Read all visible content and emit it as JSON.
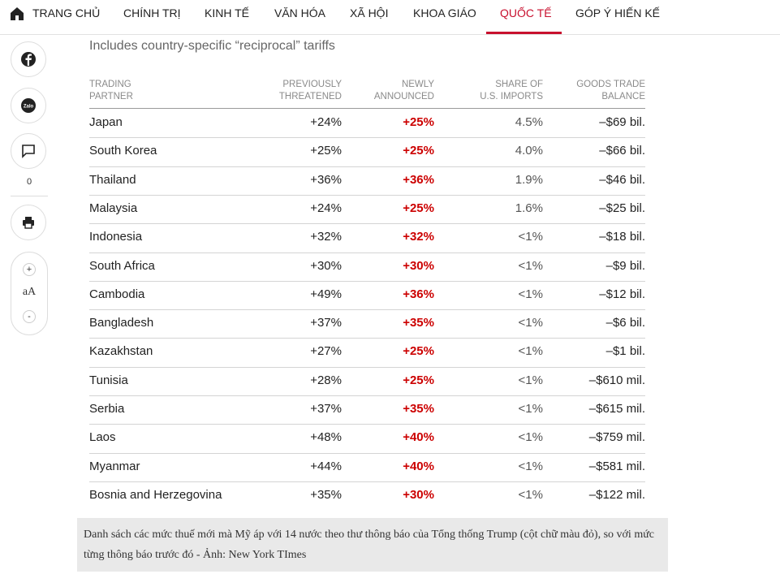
{
  "nav": {
    "items": [
      "TRANG CHỦ",
      "CHÍNH TRỊ",
      "KINH TẾ",
      "VĂN HÓA",
      "XÃ HỘI",
      "KHOA GIÁO",
      "QUỐC TẾ",
      "GÓP Ý HIẾN KẾ"
    ],
    "active": 6
  },
  "sidebar": {
    "comment_count": "0",
    "font_label": "aA",
    "font_up": "+",
    "font_down": "-"
  },
  "table": {
    "subtitle": "Includes country-specific “reciprocal” tariffs",
    "headers": [
      [
        "TRADING",
        "PARTNER"
      ],
      [
        "PREVIOUSLY",
        "THREATENED"
      ],
      [
        "NEWLY",
        "ANNOUNCED"
      ],
      [
        "SHARE OF",
        "U.S. IMPORTS"
      ],
      [
        "GOODS TRADE",
        "BALANCE"
      ]
    ],
    "rows": [
      [
        "Japan",
        "+24%",
        "+25%",
        "4.5%",
        "–$69 bil."
      ],
      [
        "South Korea",
        "+25%",
        "+25%",
        "4.0%",
        "–$66 bil."
      ],
      [
        "Thailand",
        "+36%",
        "+36%",
        "1.9%",
        "–$46 bil."
      ],
      [
        "Malaysia",
        "+24%",
        "+25%",
        "1.6%",
        "–$25 bil."
      ],
      [
        "Indonesia",
        "+32%",
        "+32%",
        "<1%",
        "–$18 bil."
      ],
      [
        "South Africa",
        "+30%",
        "+30%",
        "<1%",
        "–$9 bil."
      ],
      [
        "Cambodia",
        "+49%",
        "+36%",
        "<1%",
        "–$12 bil."
      ],
      [
        "Bangladesh",
        "+37%",
        "+35%",
        "<1%",
        "–$6 bil."
      ],
      [
        "Kazakhstan",
        "+27%",
        "+25%",
        "<1%",
        "–$1 bil."
      ],
      [
        "Tunisia",
        "+28%",
        "+25%",
        "<1%",
        "–$610 mil."
      ],
      [
        "Serbia",
        "+37%",
        "+35%",
        "<1%",
        "–$615 mil."
      ],
      [
        "Laos",
        "+48%",
        "+40%",
        "<1%",
        "–$759 mil."
      ],
      [
        "Myanmar",
        "+44%",
        "+40%",
        "<1%",
        "–$581 mil."
      ],
      [
        "Bosnia and Herzegovina",
        "+35%",
        "+30%",
        "<1%",
        "–$122 mil."
      ]
    ]
  },
  "caption": "Danh sách các mức thuế mới mà Mỹ áp với 14 nước theo thư thông báo của Tổng thống Trump (cột chữ màu đỏ), so với mức từng thông báo trước đó - Ảnh: New York TImes"
}
